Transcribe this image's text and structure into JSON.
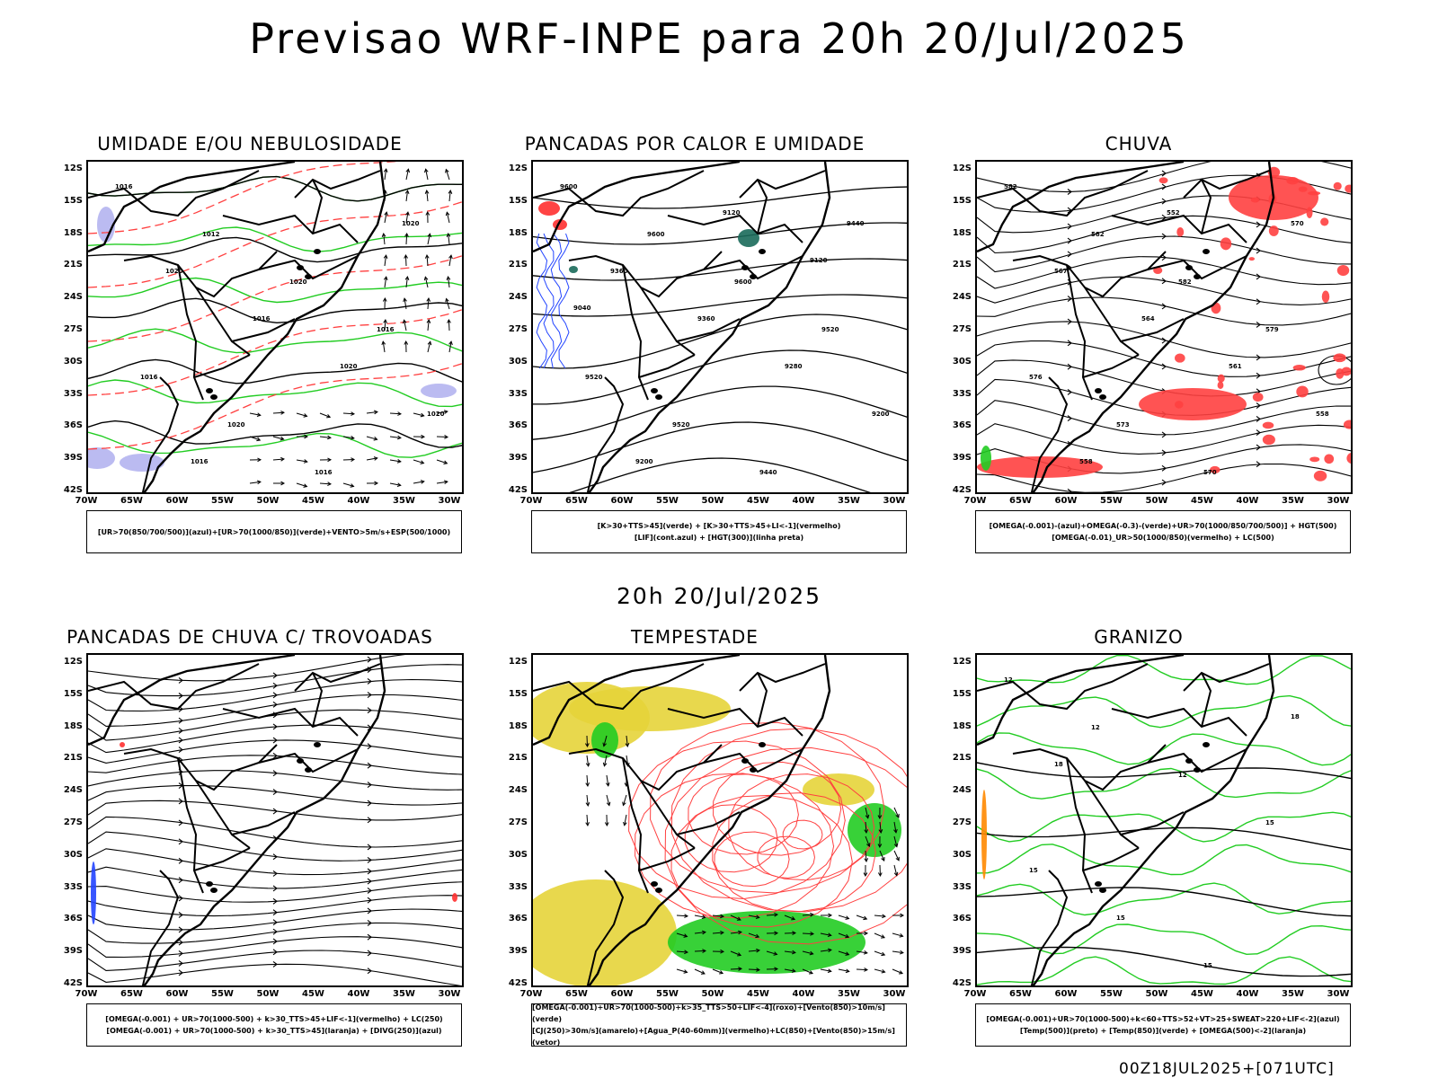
{
  "title": "Previsao WRF-INPE  para 20h 20/Jul/2025",
  "middle_label": "20h 20/Jul/2025",
  "footer": "00Z18JUL2025+[071UTC]",
  "lat_labels": [
    "12S",
    "15S",
    "18S",
    "21S",
    "24S",
    "27S",
    "30S",
    "33S",
    "36S",
    "39S",
    "42S"
  ],
  "lon_labels": [
    "70W",
    "65W",
    "60W",
    "55W",
    "50W",
    "45W",
    "40W",
    "35W",
    "30W"
  ],
  "panels": [
    {
      "title": "UMIDADE E/OU NEBULOSIDADE",
      "legend": [
        "[UR>70(850/700/500)](azul)+[UR>70(1000/850)](verde)+VENTO>5m/s+ESP(500/1000)"
      ],
      "contour_labels": [
        "1016",
        "1012",
        "1020",
        "1016",
        "1016",
        "1020",
        "1016",
        "1020",
        "1020",
        "1016",
        "1020",
        "1020",
        "1016"
      ],
      "colors": {
        "blue": "#b4b4f0",
        "green": "#22cc22",
        "red": "#ff4040"
      }
    },
    {
      "title": "PANCADAS POR CALOR E UMIDADE",
      "legend": [
        "[K>30+TTS>45](verde) + [K>30+TTS>45+LI<-1](vermelho)",
        "[LIF](cont.azul) + [HGT(300)](linha preta)"
      ],
      "contour_labels": [
        "9600",
        "9600",
        "9600",
        "9520",
        "9520",
        "9520",
        "9440",
        "9440",
        "9360",
        "9360",
        "9280",
        "9200",
        "9200",
        "9120",
        "9120",
        "9040"
      ],
      "colors": {
        "blue": "#2244ff",
        "green": "#1a6a5a",
        "red": "#ff3030"
      }
    },
    {
      "title": "CHUVA",
      "legend": [
        "[OMEGA(-0.001)-(azul)+OMEGA(-0.3)-(verde)+UR>70(1000/850/700/500)] + HGT(500)",
        "[OMEGA(-0.01)_UR>50(1000/850)(vermelho) + LC(500)"
      ],
      "contour_labels": [
        "582",
        "582",
        "582",
        "579",
        "576",
        "573",
        "570",
        "570",
        "567",
        "564",
        "561",
        "558",
        "558",
        "552"
      ],
      "colors": {
        "blue": "#2244ff",
        "green": "#22cc22",
        "red": "#ff4040"
      }
    },
    {
      "title": "PANCADAS DE CHUVA C/ TROVOADAS",
      "legend": [
        "[OMEGA(-0.001) + UR>70(1000-500) + k>30_TTS>45+LIF<-1](vermelho) + LC(250)",
        "[OMEGA(-0.001) + UR>70(1000-500) + k>30_TTS>45](laranja) + [DIVG(250)](azul)"
      ],
      "contour_labels": [],
      "colors": {
        "blue": "#2244ff",
        "orange": "#ff8800",
        "red": "#ff3030"
      }
    },
    {
      "title": "TEMPESTADE",
      "legend": [
        "[OMEGA(-0.001)+UR>70(1000-500)+k>35_TTS>50+LIF<-4](roxo)+[Vento(850)>10m/s](verde)",
        "[CJ(250)>30m/s](amarelo)+[Agua_P(40-60mm)](vermelho)+LC(850)+[Vento(850)>15m/s](vetor)"
      ],
      "contour_labels": [],
      "colors": {
        "yellow": "#e6d43a",
        "green": "#22cc22",
        "red": "#ff4040"
      }
    },
    {
      "title": "GRANIZO",
      "legend": [
        "[OMEGA(-0.001)+UR>70(1000-500)+k<60+TTS>52+VT>25+SWEAT>220+LIF<-2](azul)",
        "[Temp(500)](preto) + [Temp(850)](verde) + [OMEGA(500)<-2](laranja)"
      ],
      "contour_labels": [
        "12",
        "12",
        "12",
        "15",
        "15",
        "15",
        "15",
        "18",
        "18"
      ],
      "colors": {
        "green": "#22cc22",
        "orange": "#ff8800"
      }
    }
  ]
}
